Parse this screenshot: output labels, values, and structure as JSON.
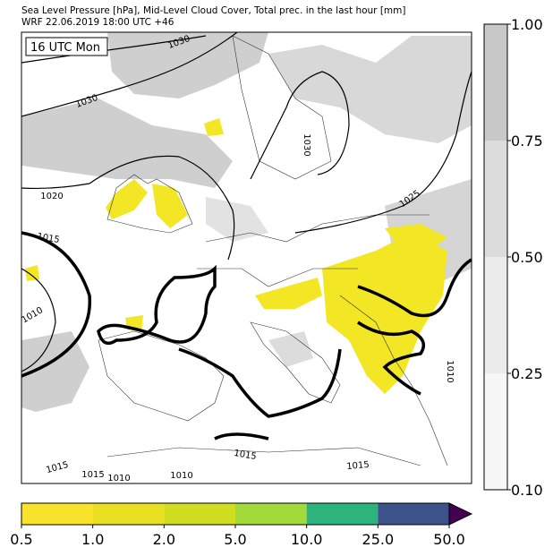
{
  "header": {
    "line1": "Sea Level Pressure [hPa], Mid-Level Cloud Cover, Total prec. in the last hour [mm]",
    "line2": "WRF 22.06.2019 18:00 UTC +46"
  },
  "map": {
    "time_label": "16 UTC Mon",
    "contour_labels": [
      "1030",
      "1030",
      "1030",
      "1020",
      "1025",
      "1015",
      "1010",
      "1015",
      "1015",
      "1015",
      "1010",
      "1010",
      "1015",
      "1010"
    ]
  },
  "cloud_colorbar": {
    "ticks": [
      "1.00",
      "0.75",
      "0.50",
      "0.25",
      "0.10"
    ],
    "colors": [
      "#c8c8c8",
      "#dcdcdc",
      "#ececec",
      "#f7f7f7"
    ]
  },
  "precip_colorbar": {
    "ticks": [
      "0.5",
      "1.0",
      "2.0",
      "5.0",
      "10.0",
      "25.0",
      "50.0"
    ],
    "colors": [
      "#f9e22a",
      "#e8e021",
      "#d1dd1f",
      "#a2d93b",
      "#2db47c",
      "#3b528b",
      "#440154"
    ]
  }
}
